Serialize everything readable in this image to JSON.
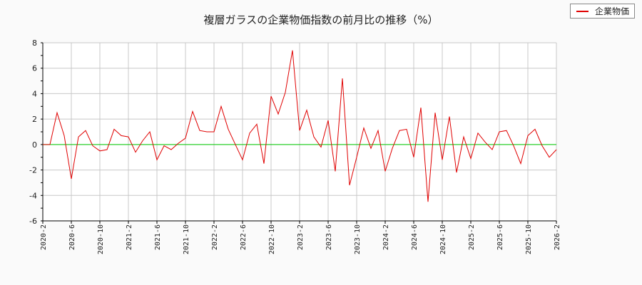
{
  "chart": {
    "title": "複層ガラスの企業物価指数の前月比の推移（%）",
    "legend_label": "企業物価",
    "line_color": "#e00000",
    "zero_line_color": "#00cc00"
  },
  "chart_data": {
    "type": "line",
    "title": "複層ガラスの企業物価指数の前月比の推移（%）",
    "xlabel": "",
    "ylabel": "",
    "ylim": [
      -6,
      8
    ],
    "yticks": [
      -6,
      -4,
      -2,
      0,
      2,
      4,
      6,
      8
    ],
    "xtick_labels": [
      "2020-2",
      "2020-6",
      "2020-10",
      "2021-2",
      "2021-6",
      "2021-10",
      "2022-2",
      "2022-6",
      "2022-10",
      "2023-2",
      "2023-6",
      "2023-10",
      "2024-2",
      "2024-6",
      "2024-10",
      "2025-2",
      "2025-6",
      "2025-10",
      "2026-2"
    ],
    "grid": true,
    "legend_position": "top-right",
    "series": [
      {
        "name": "企業物価",
        "x": [
          "2020-2",
          "2020-3",
          "2020-4",
          "2020-5",
          "2020-6",
          "2020-7",
          "2020-8",
          "2020-9",
          "2020-10",
          "2020-11",
          "2020-12",
          "2021-1",
          "2021-2",
          "2021-3",
          "2021-4",
          "2021-5",
          "2021-6",
          "2021-7",
          "2021-8",
          "2021-9",
          "2021-10",
          "2021-11",
          "2021-12",
          "2022-1",
          "2022-2",
          "2022-3",
          "2022-4",
          "2022-5",
          "2022-6",
          "2022-7",
          "2022-8",
          "2022-9",
          "2022-10",
          "2022-11",
          "2022-12",
          "2023-1",
          "2023-2",
          "2023-3",
          "2023-4",
          "2023-5",
          "2023-6",
          "2023-7",
          "2023-8",
          "2023-9",
          "2023-10",
          "2023-11",
          "2023-12",
          "2024-1",
          "2024-2",
          "2024-3",
          "2024-4",
          "2024-5",
          "2024-6",
          "2024-7",
          "2024-8",
          "2024-9",
          "2024-10",
          "2024-11",
          "2024-12",
          "2025-1",
          "2025-2",
          "2025-3",
          "2025-4",
          "2025-5",
          "2025-6",
          "2025-7",
          "2025-8",
          "2025-9",
          "2025-10",
          "2025-11",
          "2025-12",
          "2026-1",
          "2026-2"
        ],
        "values": [
          0.0,
          0.0,
          2.5,
          0.7,
          -2.7,
          0.6,
          1.1,
          -0.1,
          -0.5,
          -0.4,
          1.2,
          0.7,
          0.6,
          -0.6,
          0.3,
          1.0,
          -1.2,
          -0.1,
          -0.4,
          0.1,
          0.5,
          2.6,
          1.1,
          1.0,
          1.0,
          3.0,
          1.2,
          0.0,
          -1.2,
          0.9,
          1.6,
          -1.5,
          3.8,
          2.4,
          4.1,
          7.4,
          1.1,
          2.7,
          0.6,
          -0.2,
          1.9,
          -2.1,
          5.2,
          -3.2,
          -1.0,
          1.3,
          -0.3,
          1.1,
          -2.1,
          -0.3,
          1.1,
          1.2,
          -1.0,
          2.9,
          -4.5,
          2.5,
          -1.2,
          2.2,
          -2.2,
          0.6,
          -1.1,
          0.9,
          0.2,
          -0.4,
          1.0,
          1.1,
          -0.1,
          -1.5,
          0.7,
          1.2,
          -0.1,
          -1.0,
          -0.4
        ]
      }
    ]
  }
}
